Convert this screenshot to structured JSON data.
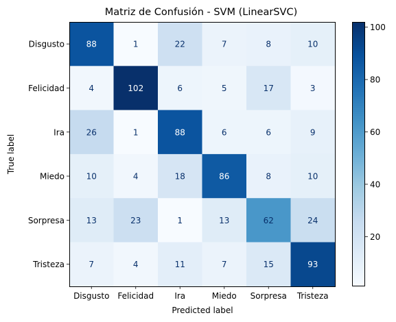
{
  "chart_data": {
    "type": "heatmap",
    "title": "Matriz de Confusión - SVM (LinearSVC)",
    "xlabel": "Predicted label",
    "ylabel": "True label",
    "x_categories": [
      "Disgusto",
      "Felicidad",
      "Ira",
      "Miedo",
      "Sorpresa",
      "Tristeza"
    ],
    "y_categories": [
      "Disgusto",
      "Felicidad",
      "Ira",
      "Miedo",
      "Sorpresa",
      "Tristeza"
    ],
    "values": [
      [
        88,
        1,
        22,
        7,
        8,
        10
      ],
      [
        4,
        102,
        6,
        5,
        17,
        3
      ],
      [
        26,
        1,
        88,
        6,
        6,
        9
      ],
      [
        10,
        4,
        18,
        86,
        8,
        10
      ],
      [
        13,
        23,
        1,
        13,
        62,
        24
      ],
      [
        7,
        4,
        11,
        7,
        15,
        93
      ]
    ],
    "colormap": "Blues",
    "colorbar": {
      "range": [
        1,
        102
      ],
      "ticks": [
        20,
        40,
        60,
        80,
        100
      ]
    }
  }
}
